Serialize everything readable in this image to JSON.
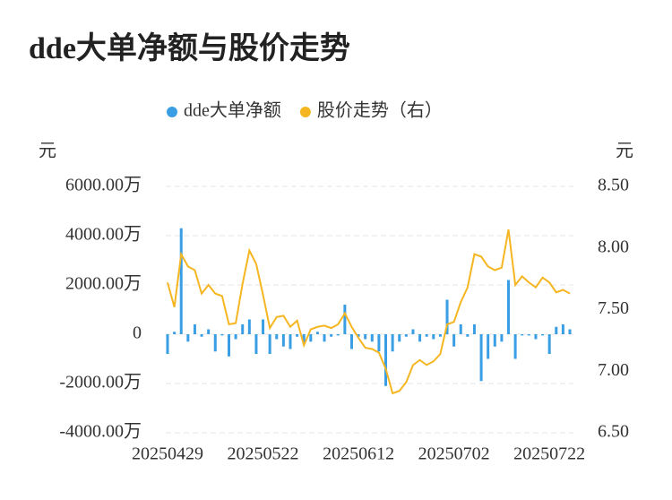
{
  "chart_data": {
    "type": "bar+line",
    "title": "dde大单净额与股价走势",
    "y_label": "元",
    "y2_label": "元",
    "categories": [
      "20250429",
      null,
      null,
      null,
      null,
      null,
      null,
      null,
      null,
      null,
      null,
      null,
      null,
      null,
      "20250522",
      null,
      null,
      null,
      null,
      null,
      null,
      null,
      null,
      null,
      null,
      null,
      null,
      null,
      "20250612",
      null,
      null,
      null,
      null,
      null,
      null,
      null,
      null,
      null,
      null,
      null,
      null,
      null,
      "20250702",
      null,
      null,
      null,
      null,
      null,
      null,
      null,
      null,
      null,
      null,
      null,
      null,
      null,
      "20250722",
      null,
      null,
      null
    ],
    "series": [
      {
        "name": "dde大单净额",
        "type": "bar",
        "color": "#3a9ee4",
        "values": [
          -800,
          100,
          4300,
          -300,
          400,
          -100,
          200,
          -700,
          -50,
          -900,
          -200,
          400,
          600,
          -800,
          600,
          -800,
          -200,
          -500,
          -600,
          -100,
          -400,
          -300,
          100,
          -300,
          -100,
          -50,
          1200,
          -600,
          -100,
          -200,
          -300,
          -700,
          -2100,
          -700,
          -300,
          -100,
          200,
          -300,
          -100,
          -200,
          -100,
          1400,
          -500,
          400,
          -100,
          400,
          -1900,
          -1000,
          -500,
          -300,
          2200,
          -1000,
          -50,
          -50,
          -200,
          -50,
          -800,
          300,
          400,
          200
        ]
      },
      {
        "name": "股价走势（右）",
        "type": "line",
        "axis": "y2",
        "color": "#f5b622",
        "values": [
          7.72,
          7.52,
          7.95,
          7.85,
          7.82,
          7.63,
          7.7,
          7.63,
          7.61,
          7.38,
          7.39,
          7.71,
          7.98,
          7.87,
          7.62,
          7.35,
          7.44,
          7.45,
          7.36,
          7.41,
          7.21,
          7.34,
          7.36,
          7.37,
          7.35,
          7.38,
          7.47,
          7.36,
          7.27,
          7.19,
          7.18,
          7.15,
          7.02,
          6.82,
          6.84,
          6.91,
          7.05,
          7.09,
          7.05,
          7.08,
          7.14,
          7.38,
          7.4,
          7.56,
          7.68,
          7.95,
          7.93,
          7.85,
          7.82,
          7.84,
          8.15,
          7.7,
          7.77,
          7.72,
          7.68,
          7.76,
          7.72,
          7.64,
          7.66,
          7.63
        ]
      }
    ],
    "ylim": [
      -4000,
      6000
    ],
    "yticks": [
      {
        "value": 6000,
        "label": "6000.00万"
      },
      {
        "value": 4000,
        "label": "4000.00万"
      },
      {
        "value": 2000,
        "label": "2000.00万"
      },
      0,
      {
        "value": -2000,
        "label": "-2000.00万"
      },
      {
        "value": -4000,
        "label": "-4000.00万"
      }
    ],
    "y2lim": [
      6.5,
      8.5
    ],
    "y2ticks": [
      {
        "value": 8.5,
        "label": "8.50"
      },
      {
        "value": 8,
        "label": "8.00"
      },
      {
        "value": 7.5,
        "label": "7.50"
      },
      {
        "value": 7,
        "label": "7.00"
      },
      {
        "value": 6.5,
        "label": "6.50"
      }
    ],
    "grid": true,
    "legend": "top"
  }
}
